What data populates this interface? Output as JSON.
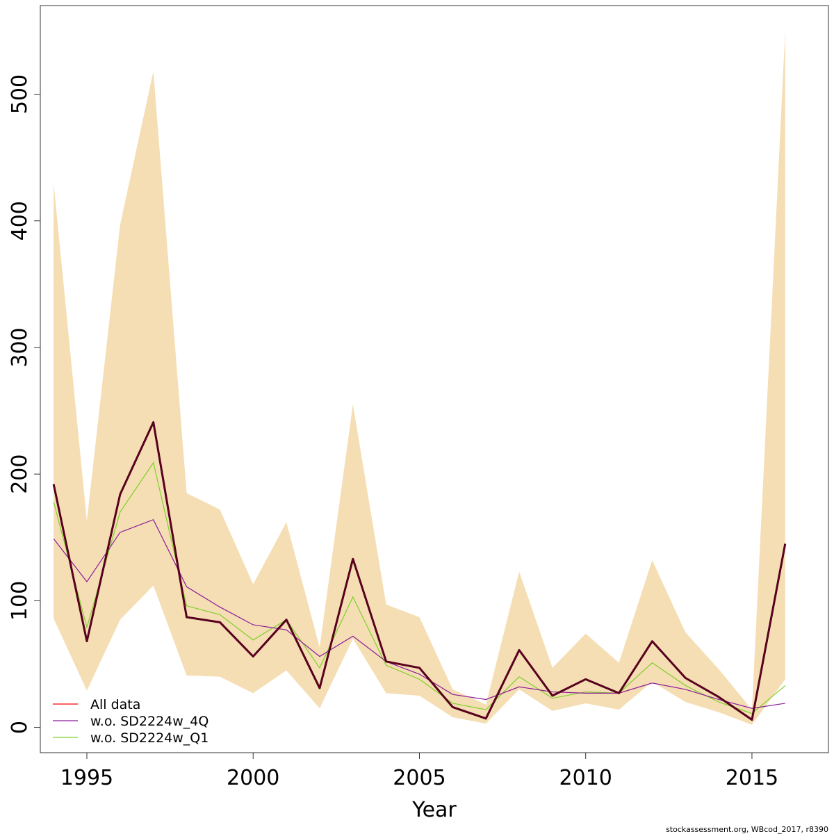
{
  "chart_data": {
    "type": "line",
    "xlabel": "Year",
    "ylabel": "",
    "xlim": [
      1993.6,
      2017.3
    ],
    "ylim": [
      -20,
      570
    ],
    "x_ticks": [
      1995,
      2000,
      2005,
      2010,
      2015
    ],
    "y_ticks": [
      0,
      100,
      200,
      300,
      400,
      500
    ],
    "x": [
      1994,
      1995,
      1996,
      1997,
      1998,
      1999,
      2000,
      2001,
      2002,
      2003,
      2004,
      2005,
      2006,
      2007,
      2008,
      2009,
      2010,
      2011,
      2012,
      2013,
      2014,
      2015,
      2016
    ],
    "band": {
      "color": "#f5deb3",
      "upper": [
        430,
        163,
        397,
        518,
        185,
        172,
        113,
        162,
        63,
        255,
        97,
        87,
        30,
        18,
        123,
        47,
        74,
        51,
        132,
        75,
        46,
        14,
        550
      ],
      "lower": [
        86,
        29,
        85,
        112,
        41,
        40,
        27,
        45,
        15,
        70,
        27,
        25,
        8,
        3,
        30,
        13,
        19,
        14,
        36,
        20,
        12,
        2,
        38
      ]
    },
    "series": [
      {
        "name": "All data",
        "color": "#ff0000",
        "values": [
          192,
          68,
          184,
          241,
          87,
          83,
          56,
          85,
          31,
          133,
          52,
          47,
          16,
          7,
          61,
          25,
          38,
          27,
          68,
          39,
          24,
          6,
          145
        ]
      },
      {
        "name": "w.o. SD2224w_4Q",
        "color": "#8b1a9a",
        "values": [
          149,
          115,
          154,
          164,
          111,
          95,
          81,
          77,
          56,
          72,
          52,
          42,
          26,
          22,
          32,
          28,
          27,
          27,
          35,
          30,
          22,
          15,
          19
        ]
      },
      {
        "name": "w.o. SD2224w_Q1",
        "color": "#7fd02a",
        "values": [
          178,
          79,
          170,
          209,
          96,
          89,
          69,
          85,
          47,
          103,
          49,
          38,
          19,
          14,
          40,
          23,
          28,
          27,
          51,
          33,
          20,
          11,
          33
        ]
      }
    ],
    "main_line_color": "#4a0020",
    "legend_placement": "bottom-left",
    "grid": false
  },
  "footer": "stockassessment.org, WBcod_2017, r8390"
}
